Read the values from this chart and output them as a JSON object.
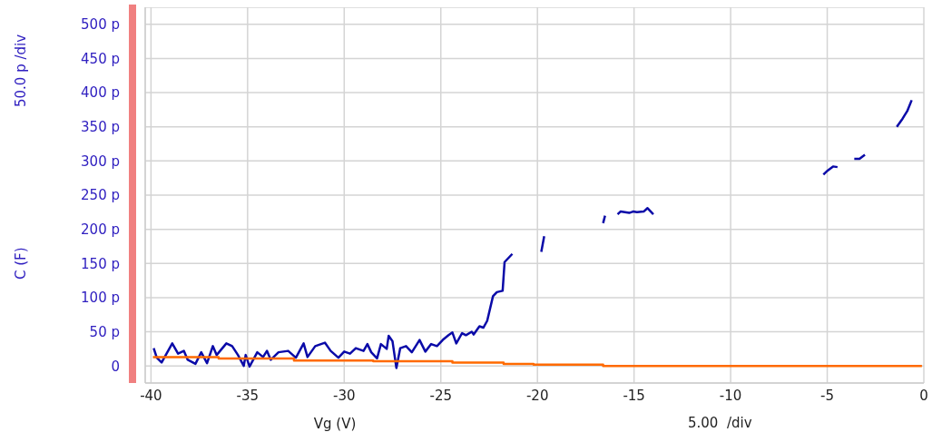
{
  "chart_data": {
    "type": "line",
    "xlabel": "Vg (V)",
    "ylabel": "C (F)",
    "annotations": [
      "50.0 p /div",
      "5.00  /div"
    ],
    "xlim": [
      -40.3,
      0
    ],
    "xticks": [
      -40,
      -35,
      -30,
      -25,
      -20,
      -15,
      -10,
      -5,
      0
    ],
    "ylim": [
      -25,
      525
    ],
    "yticks": [
      0,
      {
        "value": 50,
        "label": "50 p"
      },
      {
        "value": 100,
        "label": "100 p"
      },
      {
        "value": 150,
        "label": "150 p"
      },
      {
        "value": 200,
        "label": "200 p"
      },
      {
        "value": 250,
        "label": "250 p"
      },
      {
        "value": 300,
        "label": "300 p"
      },
      {
        "value": 350,
        "label": "350 p"
      },
      {
        "value": 400,
        "label": "400 p"
      },
      {
        "value": 450,
        "label": "450 p"
      },
      {
        "value": 500,
        "label": "500 p"
      }
    ],
    "grid": true,
    "legend": false,
    "marker": "none",
    "line_style": "solid",
    "series": [
      {
        "color": "#0a0aa8",
        "x": [
          -39.86,
          -39.7,
          -39.45,
          -38.9,
          -38.6,
          -38.3,
          -38.1,
          -37.7,
          -37.4,
          -37.1,
          -36.8,
          -36.6,
          -36.1,
          -35.8,
          -35.5,
          -35.2,
          -35.1,
          -34.9,
          -34.5,
          -34.2,
          -34.0,
          -33.8,
          -33.4,
          -32.9,
          -32.5,
          -32.1,
          -31.9,
          -31.5,
          -31.0,
          -30.7,
          -30.3,
          -30.0,
          -29.7,
          -29.4,
          -29.0,
          -28.8,
          -28.6,
          -28.3,
          -28.1,
          -27.8,
          -27.7,
          -27.5,
          -27.3,
          -27.1,
          -26.8,
          -26.5,
          -26.1,
          -25.8,
          -25.5,
          -25.2,
          -24.9,
          -24.6,
          -24.4,
          -24.2,
          -23.9,
          -23.7,
          -23.4,
          -23.3,
          -23.0,
          -22.8,
          -22.6,
          -22.3,
          -22.1,
          -21.8,
          -21.7,
          -21.3,
          -20.5,
          -19.8,
          -19.65,
          -18.0,
          -16.6,
          -16.5,
          -16.2,
          -15.85,
          -15.7,
          -15.25,
          -15.05,
          -14.85,
          -14.5,
          -14.3,
          -14.0,
          -9.0,
          -5.2,
          -4.98,
          -4.7,
          -4.47,
          -4.0,
          -3.6,
          -3.33,
          -3.05,
          -2.2,
          -1.4,
          -1.1,
          -0.86,
          -0.63
        ],
        "values": [
          26,
          12,
          5,
          33,
          18,
          22,
          9,
          3,
          20,
          4,
          29,
          16,
          33,
          29,
          16,
          0,
          16,
          -1,
          20,
          13,
          22,
          9,
          20,
          22,
          12,
          33,
          13,
          29,
          34,
          22,
          12,
          21,
          18,
          26,
          22,
          32,
          20,
          11,
          32,
          25,
          44,
          36,
          -3,
          26,
          29,
          20,
          38,
          21,
          32,
          29,
          38,
          45,
          49,
          33,
          48,
          45,
          50,
          46,
          58,
          56,
          66,
          102,
          108,
          110,
          152,
          164,
          null,
          167,
          190,
          null,
          209,
          220,
          null,
          222,
          226,
          224,
          226,
          225,
          226,
          231,
          222,
          null,
          280,
          286,
          292,
          291,
          null,
          303,
          303,
          309,
          null,
          350,
          362,
          373,
          389
        ]
      },
      {
        "type": "step",
        "color": "#ff6a00",
        "x": [
          -39.9,
          -36.5,
          -32.6,
          -28.5,
          -24.4,
          -21.75,
          -20.2,
          -16.6,
          -0.1
        ],
        "values": [
          13,
          11,
          8,
          7,
          5,
          3,
          2,
          0,
          0
        ]
      }
    ]
  }
}
